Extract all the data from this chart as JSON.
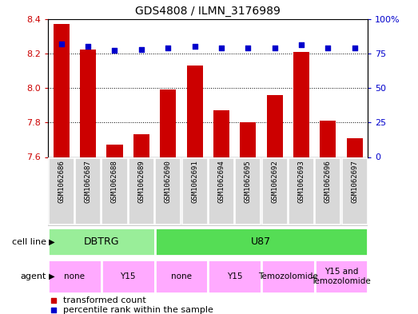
{
  "title": "GDS4808 / ILMN_3176989",
  "samples": [
    "GSM1062686",
    "GSM1062687",
    "GSM1062688",
    "GSM1062689",
    "GSM1062690",
    "GSM1062691",
    "GSM1062694",
    "GSM1062695",
    "GSM1062692",
    "GSM1062693",
    "GSM1062696",
    "GSM1062697"
  ],
  "transformed_count": [
    8.37,
    8.22,
    7.67,
    7.73,
    7.99,
    8.13,
    7.87,
    7.8,
    7.96,
    8.21,
    7.81,
    7.71
  ],
  "percentile_rank": [
    82,
    80,
    77,
    78,
    79,
    80,
    79,
    79,
    79,
    81,
    79,
    79
  ],
  "bar_color": "#cc0000",
  "dot_color": "#0000cc",
  "ylim_left": [
    7.6,
    8.4
  ],
  "ylim_right": [
    0,
    100
  ],
  "yticks_left": [
    7.6,
    7.8,
    8.0,
    8.2,
    8.4
  ],
  "yticks_right": [
    0,
    25,
    50,
    75,
    100
  ],
  "cell_line_groups": [
    {
      "label": "DBTRG",
      "start": 0,
      "end": 3,
      "color": "#99ee99"
    },
    {
      "label": "U87",
      "start": 4,
      "end": 11,
      "color": "#55dd55"
    }
  ],
  "agent_groups": [
    {
      "label": "none",
      "start": 0,
      "end": 1,
      "color": "#ffaaff"
    },
    {
      "label": "Y15",
      "start": 2,
      "end": 3,
      "color": "#ffaaff"
    },
    {
      "label": "none",
      "start": 4,
      "end": 5,
      "color": "#ffaaff"
    },
    {
      "label": "Y15",
      "start": 6,
      "end": 7,
      "color": "#ffaaff"
    },
    {
      "label": "Temozolomide",
      "start": 8,
      "end": 9,
      "color": "#ffaaff"
    },
    {
      "label": "Y15 and\nTemozolomide",
      "start": 10,
      "end": 11,
      "color": "#ffaaff"
    }
  ],
  "legend_items": [
    {
      "label": "transformed count",
      "color": "#cc0000"
    },
    {
      "label": "percentile rank within the sample",
      "color": "#0000cc"
    }
  ],
  "bar_bottom": 7.6,
  "xlabel_color": "#cc0000",
  "ylabel_right_color": "#0000cc",
  "sample_bg_color": "#cccccc",
  "cell_line_label": "cell line",
  "agent_label": "agent"
}
